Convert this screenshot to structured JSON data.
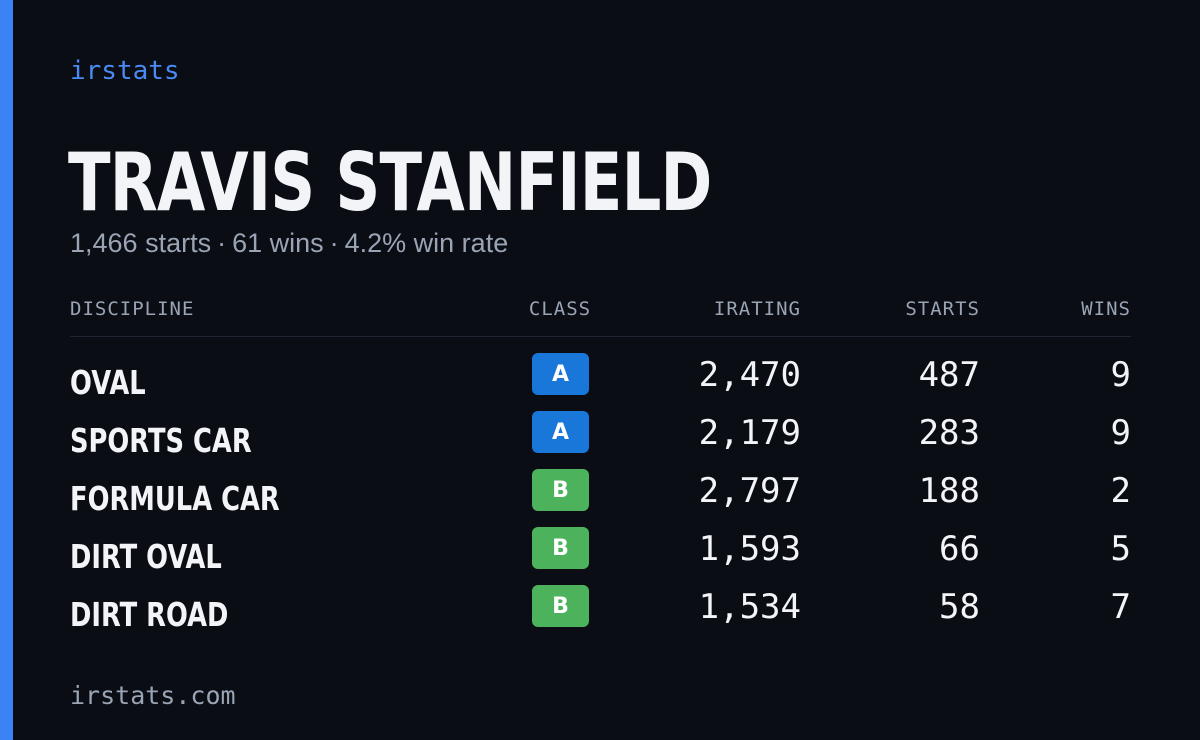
{
  "brand": "irstats",
  "accent_color": "#3b82f6",
  "player": {
    "name": "TRAVIS STANFIELD",
    "starts_text": "1,466 starts",
    "wins_text": "61 wins",
    "win_rate_text": "4.2% win rate",
    "separator": "·"
  },
  "table": {
    "headers": {
      "discipline": "DISCIPLINE",
      "class": "CLASS",
      "irating": "IRATING",
      "starts": "STARTS",
      "wins": "WINS"
    },
    "rows": [
      {
        "discipline": "OVAL",
        "class": "A",
        "class_color": "#1877d8",
        "irating": "2,470",
        "starts": "487",
        "wins": "9"
      },
      {
        "discipline": "SPORTS CAR",
        "class": "A",
        "class_color": "#1877d8",
        "irating": "2,179",
        "starts": "283",
        "wins": "9"
      },
      {
        "discipline": "FORMULA CAR",
        "class": "B",
        "class_color": "#4cb25c",
        "irating": "2,797",
        "starts": "188",
        "wins": "2"
      },
      {
        "discipline": "DIRT OVAL",
        "class": "B",
        "class_color": "#4cb25c",
        "irating": "1,593",
        "starts": "66",
        "wins": "5"
      },
      {
        "discipline": "DIRT ROAD",
        "class": "B",
        "class_color": "#4cb25c",
        "irating": "1,534",
        "starts": "58",
        "wins": "7"
      }
    ]
  },
  "footer": "irstats.com"
}
